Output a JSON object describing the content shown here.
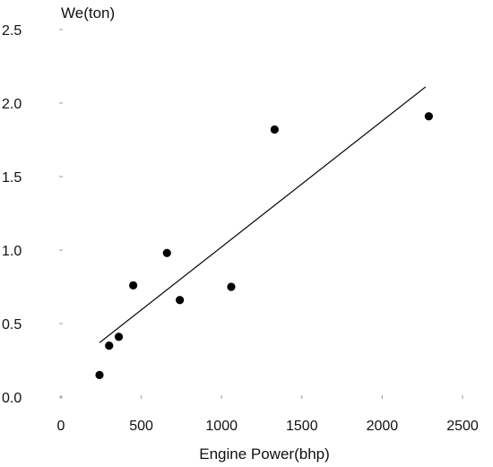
{
  "chart_data": {
    "type": "scatter",
    "xlabel": "Engine Power(bhp)",
    "ylabel": "We(ton)",
    "xlim": [
      0,
      2500
    ],
    "ylim": [
      0,
      2.5
    ],
    "x_ticks": [
      0,
      500,
      1000,
      1500,
      2000,
      2500
    ],
    "x_tick_labels": [
      "0",
      "500",
      "1000",
      "1500",
      "2000",
      "2500"
    ],
    "y_ticks": [
      0,
      0.5,
      1.0,
      1.5,
      2.0,
      2.5
    ],
    "y_tick_labels": [
      "0.0",
      "0.5",
      "1.0",
      "1.5",
      "2.0",
      "2.5"
    ],
    "grid": false,
    "series": [
      {
        "points": [
          {
            "x": 240,
            "y": 0.15
          },
          {
            "x": 300,
            "y": 0.35
          },
          {
            "x": 360,
            "y": 0.41
          },
          {
            "x": 450,
            "y": 0.76
          },
          {
            "x": 660,
            "y": 0.98
          },
          {
            "x": 740,
            "y": 0.66
          },
          {
            "x": 1060,
            "y": 0.75
          },
          {
            "x": 1330,
            "y": 1.82
          },
          {
            "x": 2290,
            "y": 1.91
          }
        ]
      }
    ],
    "trendline": {
      "x": [
        240,
        2270
      ],
      "y": [
        0.37,
        2.11
      ]
    },
    "colors": {
      "points": "#000000",
      "line": "#000000",
      "text": "#111111"
    }
  }
}
